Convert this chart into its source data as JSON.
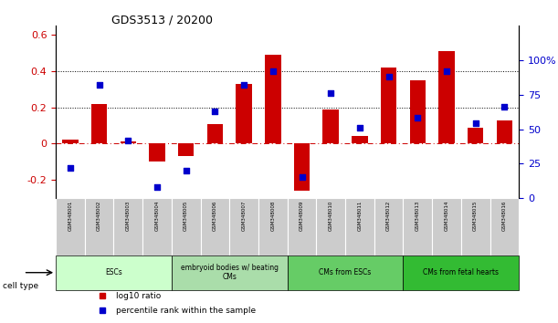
{
  "title": "GDS3513 / 20200",
  "samples": [
    "GSM348001",
    "GSM348002",
    "GSM348003",
    "GSM348004",
    "GSM348005",
    "GSM348006",
    "GSM348007",
    "GSM348008",
    "GSM348009",
    "GSM348010",
    "GSM348011",
    "GSM348012",
    "GSM348013",
    "GSM348014",
    "GSM348015",
    "GSM348016"
  ],
  "log10_ratio": [
    0.02,
    0.22,
    0.01,
    -0.1,
    -0.07,
    0.11,
    0.33,
    0.49,
    -0.26,
    0.19,
    0.04,
    0.42,
    0.35,
    0.51,
    0.09,
    0.13
  ],
  "percentile_rank": [
    22,
    82,
    42,
    8,
    20,
    63,
    82,
    92,
    15,
    76,
    51,
    88,
    58,
    92,
    54,
    66
  ],
  "bar_color": "#cc0000",
  "dot_color": "#0000cc",
  "ylim_left": [
    -0.3,
    0.65
  ],
  "ylim_right": [
    0,
    125
  ],
  "yticks_left": [
    -0.2,
    0.0,
    0.2,
    0.4,
    0.6
  ],
  "ytick_labels_left": [
    "-0.2",
    "0",
    "0.2",
    "0.4",
    "0.6"
  ],
  "yticks_right": [
    0,
    25,
    50,
    75,
    100
  ],
  "ytick_labels_right": [
    "0",
    "25",
    "50",
    "75",
    "100%"
  ],
  "hlines_y": [
    0.2,
    0.4
  ],
  "cell_type_groups": [
    {
      "label": "ESCs",
      "start": 0,
      "end": 3,
      "color": "#ccffcc"
    },
    {
      "label": "embryoid bodies w/ beating\nCMs",
      "start": 4,
      "end": 7,
      "color": "#aaddaa"
    },
    {
      "label": "CMs from ESCs",
      "start": 8,
      "end": 11,
      "color": "#66cc66"
    },
    {
      "label": "CMs from fetal hearts",
      "start": 12,
      "end": 15,
      "color": "#33bb33"
    }
  ],
  "legend_items": [
    {
      "label": "log10 ratio",
      "color": "#cc0000",
      "marker": "s"
    },
    {
      "label": "percentile rank within the sample",
      "color": "#0000cc",
      "marker": "s"
    }
  ],
  "fig_width": 6.11,
  "fig_height": 3.54,
  "dpi": 100
}
